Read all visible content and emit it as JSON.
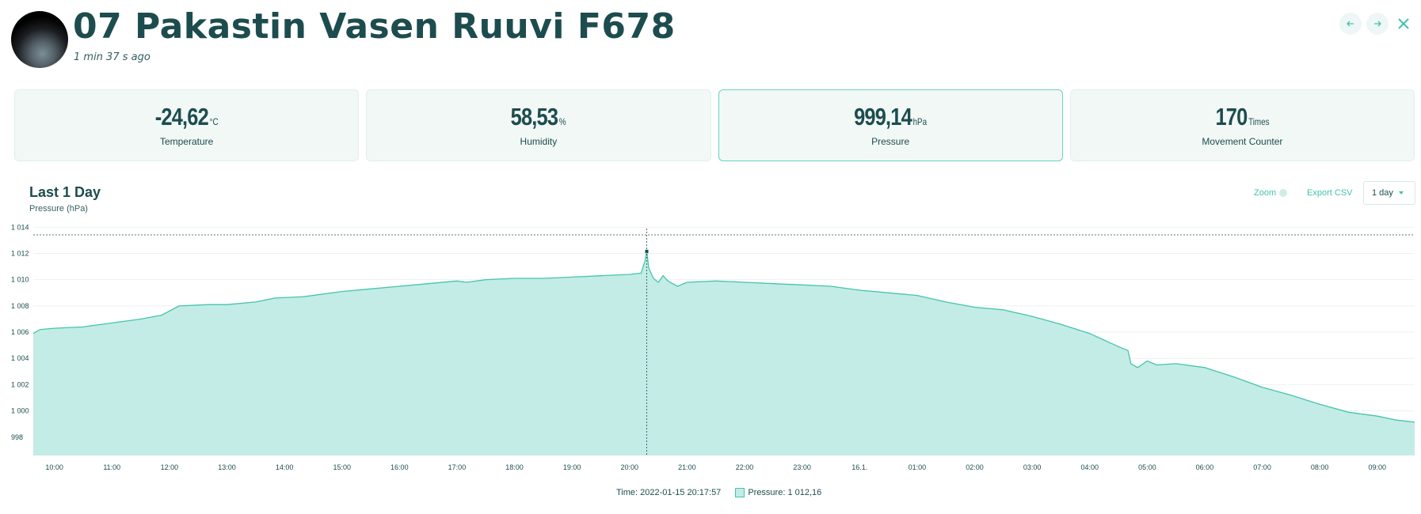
{
  "header": {
    "title": "07 Pakastin Vasen Ruuvi F678",
    "updated": "1 min 37 s ago"
  },
  "nav": {
    "prev_icon": "arrow-left-icon",
    "next_icon": "arrow-right-icon",
    "close_icon": "close-icon"
  },
  "cards": [
    {
      "value": "-24,62",
      "unit": "°C",
      "label": "Temperature",
      "active": false
    },
    {
      "value": "58,53",
      "unit": "%",
      "label": "Humidity",
      "active": false
    },
    {
      "value": "999,14",
      "unit": "hPa",
      "label": "Pressure",
      "active": true
    },
    {
      "value": "170",
      "unit": "Times",
      "label": "Movement Counter",
      "active": false
    }
  ],
  "chart_header": {
    "title": "Last 1 Day",
    "subtitle": "Pressure (hPa)",
    "zoom_label": "Zoom",
    "export_label": "Export CSV",
    "range_value": "1 day"
  },
  "legend": {
    "time_label": "Time:",
    "time_value": "2022-01-15 20:17:57",
    "series_label": "Pressure:",
    "series_value": "1 012,16"
  },
  "colors": {
    "accent": "#43c2ad",
    "fill": "#c3ece6",
    "line": "#46c4ad",
    "text": "#1d4c4e"
  },
  "chart_data": {
    "type": "area",
    "title": "Last 1 Day",
    "ylabel": "Pressure (hPa)",
    "ylim": [
      996.6,
      1014.2
    ],
    "xlim": [
      "2022-01-15 09:38",
      "2022-01-16 09:39"
    ],
    "grid": true,
    "y_ticks": [
      "998",
      "1 000",
      "1 002",
      "1 004",
      "1 006",
      "1 008",
      "1 010",
      "1 012",
      "1 014"
    ],
    "y_tick_values": [
      998,
      1000,
      1002,
      1004,
      1006,
      1008,
      1010,
      1012,
      1014
    ],
    "x_ticks": [
      "10:00",
      "11:00",
      "12:00",
      "13:00",
      "14:00",
      "15:00",
      "16:00",
      "17:00",
      "18:00",
      "19:00",
      "20:00",
      "21:00",
      "22:00",
      "23:00",
      "16.1.",
      "01:00",
      "02:00",
      "03:00",
      "04:00",
      "05:00",
      "06:00",
      "07:00",
      "08:00",
      "09:00"
    ],
    "x_tick_values": [
      "2022-01-15 10:00",
      "2022-01-15 11:00",
      "2022-01-15 12:00",
      "2022-01-15 13:00",
      "2022-01-15 14:00",
      "2022-01-15 15:00",
      "2022-01-15 16:00",
      "2022-01-15 17:00",
      "2022-01-15 18:00",
      "2022-01-15 19:00",
      "2022-01-15 20:00",
      "2022-01-15 21:00",
      "2022-01-15 22:00",
      "2022-01-15 23:00",
      "2022-01-16 00:00",
      "2022-01-16 01:00",
      "2022-01-16 02:00",
      "2022-01-16 03:00",
      "2022-01-16 04:00",
      "2022-01-16 05:00",
      "2022-01-16 06:00",
      "2022-01-16 07:00",
      "2022-01-16 08:00",
      "2022-01-16 09:00"
    ],
    "cursor": {
      "x": "2022-01-15 20:17:57",
      "y": 1012.16
    },
    "series": [
      {
        "values": [
          [
            "2022-01-15 09:38",
            1005.9
          ],
          [
            "2022-01-15 09:45",
            1006.2
          ],
          [
            "2022-01-15 10:00",
            1006.3
          ],
          [
            "2022-01-15 10:30",
            1006.4
          ],
          [
            "2022-01-15 11:00",
            1006.7
          ],
          [
            "2022-01-15 11:30",
            1007.0
          ],
          [
            "2022-01-15 11:52",
            1007.3
          ],
          [
            "2022-01-15 12:10",
            1008.0
          ],
          [
            "2022-01-15 12:40",
            1008.1
          ],
          [
            "2022-01-15 13:00",
            1008.1
          ],
          [
            "2022-01-15 13:30",
            1008.3
          ],
          [
            "2022-01-15 13:50",
            1008.6
          ],
          [
            "2022-01-15 14:20",
            1008.7
          ],
          [
            "2022-01-15 15:00",
            1009.1
          ],
          [
            "2022-01-15 15:30",
            1009.3
          ],
          [
            "2022-01-15 16:00",
            1009.5
          ],
          [
            "2022-01-15 16:30",
            1009.7
          ],
          [
            "2022-01-15 17:00",
            1009.9
          ],
          [
            "2022-01-15 17:10",
            1009.8
          ],
          [
            "2022-01-15 17:30",
            1010.0
          ],
          [
            "2022-01-15 18:00",
            1010.1
          ],
          [
            "2022-01-15 18:30",
            1010.1
          ],
          [
            "2022-01-15 19:00",
            1010.2
          ],
          [
            "2022-01-15 19:30",
            1010.3
          ],
          [
            "2022-01-15 20:00",
            1010.4
          ],
          [
            "2022-01-15 20:12",
            1010.5
          ],
          [
            "2022-01-15 20:16",
            1011.4
          ],
          [
            "2022-01-15 20:18",
            1012.16
          ],
          [
            "2022-01-15 20:20",
            1010.9
          ],
          [
            "2022-01-15 20:25",
            1010.1
          ],
          [
            "2022-01-15 20:30",
            1009.8
          ],
          [
            "2022-01-15 20:35",
            1010.3
          ],
          [
            "2022-01-15 20:40",
            1009.9
          ],
          [
            "2022-01-15 20:50",
            1009.5
          ],
          [
            "2022-01-15 21:00",
            1009.8
          ],
          [
            "2022-01-15 21:30",
            1009.9
          ],
          [
            "2022-01-15 22:00",
            1009.8
          ],
          [
            "2022-01-15 22:30",
            1009.7
          ],
          [
            "2022-01-15 23:00",
            1009.6
          ],
          [
            "2022-01-15 23:30",
            1009.5
          ],
          [
            "2022-01-16 00:00",
            1009.2
          ],
          [
            "2022-01-16 00:30",
            1009.0
          ],
          [
            "2022-01-16 01:00",
            1008.8
          ],
          [
            "2022-01-16 01:30",
            1008.3
          ],
          [
            "2022-01-16 02:00",
            1007.9
          ],
          [
            "2022-01-16 02:30",
            1007.7
          ],
          [
            "2022-01-16 03:00",
            1007.2
          ],
          [
            "2022-01-16 03:30",
            1006.6
          ],
          [
            "2022-01-16 04:00",
            1005.9
          ],
          [
            "2022-01-16 04:30",
            1004.9
          ],
          [
            "2022-01-16 04:40",
            1004.6
          ],
          [
            "2022-01-16 04:43",
            1003.6
          ],
          [
            "2022-01-16 04:50",
            1003.3
          ],
          [
            "2022-01-16 05:00",
            1003.8
          ],
          [
            "2022-01-16 05:10",
            1003.5
          ],
          [
            "2022-01-16 05:30",
            1003.6
          ],
          [
            "2022-01-16 06:00",
            1003.3
          ],
          [
            "2022-01-16 06:30",
            1002.6
          ],
          [
            "2022-01-16 07:00",
            1001.8
          ],
          [
            "2022-01-16 07:30",
            1001.2
          ],
          [
            "2022-01-16 08:00",
            1000.5
          ],
          [
            "2022-01-16 08:30",
            999.9
          ],
          [
            "2022-01-16 09:00",
            999.6
          ],
          [
            "2022-01-16 09:20",
            999.3
          ],
          [
            "2022-01-16 09:39",
            999.14
          ]
        ]
      }
    ]
  }
}
